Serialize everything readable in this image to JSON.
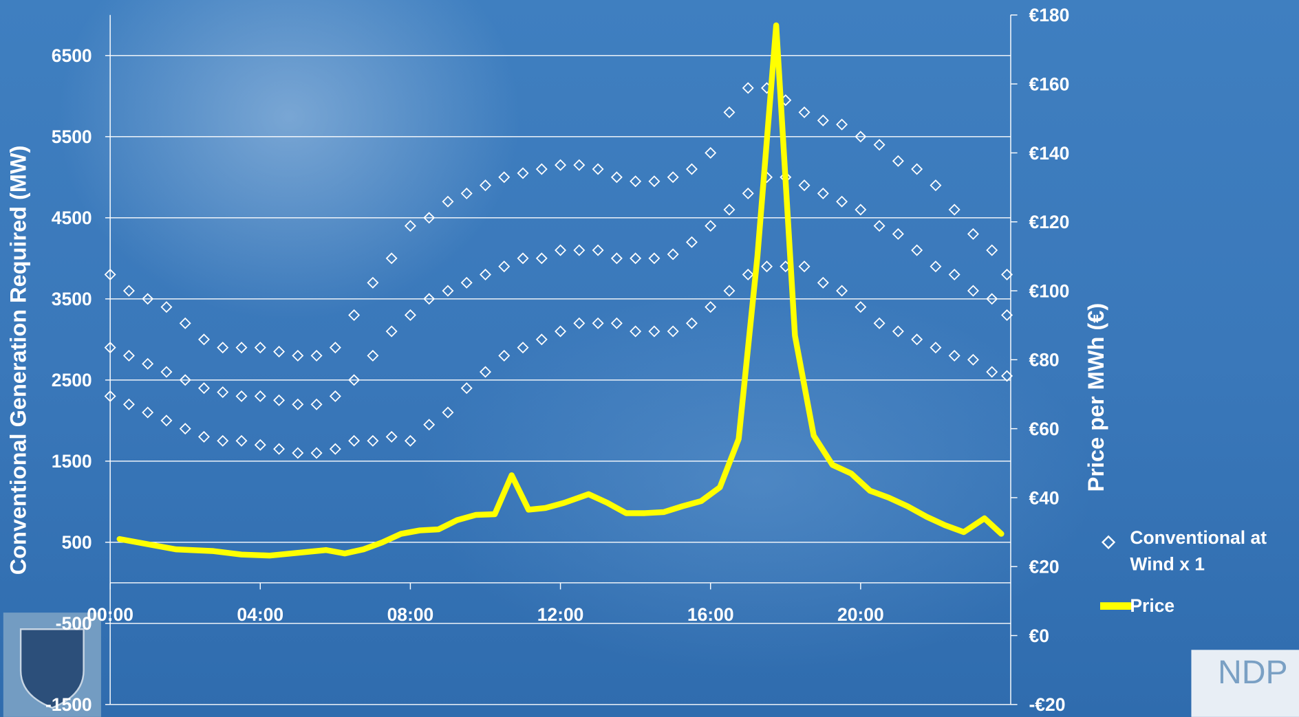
{
  "chart_data": {
    "type": "combo",
    "y_axis_label": "Conventional Generation Required (MW)",
    "y2_axis_label": "Price per MWh (€)",
    "xlim": [
      0,
      24
    ],
    "xticks": [
      {
        "value": 0,
        "label": "00:00"
      },
      {
        "value": 4,
        "label": "04:00"
      },
      {
        "value": 8,
        "label": "08:00"
      },
      {
        "value": 12,
        "label": "12:00"
      },
      {
        "value": 16,
        "label": "16:00"
      },
      {
        "value": 20,
        "label": "20:00"
      }
    ],
    "ylim": [
      -1500,
      7000
    ],
    "yticks": [
      -1500,
      -500,
      500,
      1500,
      2500,
      3500,
      4500,
      5500,
      6500
    ],
    "y2lim": [
      -20,
      180
    ],
    "y2ticks": [
      {
        "value": -20,
        "label": "-€20"
      },
      {
        "value": 0,
        "label": "€0"
      },
      {
        "value": 20,
        "label": "€20"
      },
      {
        "value": 40,
        "label": "€40"
      },
      {
        "value": 60,
        "label": "€60"
      },
      {
        "value": 80,
        "label": "€80"
      },
      {
        "value": 100,
        "label": "€100"
      },
      {
        "value": 120,
        "label": "€120"
      },
      {
        "value": 140,
        "label": "€140"
      },
      {
        "value": 160,
        "label": "€160"
      },
      {
        "value": 180,
        "label": "€180"
      }
    ],
    "grid": true,
    "series": [
      {
        "name": "Conventional at Wind x 1",
        "type": "scatter",
        "color": "#ffffff",
        "x": [
          0,
          0,
          0,
          0.5,
          0.5,
          0.5,
          1,
          1,
          1,
          1.5,
          1.5,
          1.5,
          2,
          2,
          2,
          2.5,
          2.5,
          2.5,
          3,
          3,
          3,
          3.5,
          3.5,
          3.5,
          4,
          4,
          4,
          4.5,
          4.5,
          4.5,
          5,
          5,
          5,
          5.5,
          5.5,
          5.5,
          6,
          6,
          6,
          6.5,
          6.5,
          6.5,
          7,
          7,
          7,
          7.5,
          7.5,
          7.5,
          8,
          8,
          8,
          8.5,
          8.5,
          8.5,
          9,
          9,
          9,
          9.5,
          9.5,
          9.5,
          10,
          10,
          10,
          10.5,
          10.5,
          10.5,
          11,
          11,
          11,
          11.5,
          11.5,
          11.5,
          12,
          12,
          12,
          12.5,
          12.5,
          12.5,
          13,
          13,
          13,
          13.5,
          13.5,
          13.5,
          14,
          14,
          14,
          14.5,
          14.5,
          14.5,
          15,
          15,
          15,
          15.5,
          15.5,
          15.5,
          16,
          16,
          16,
          16.5,
          16.5,
          16.5,
          17,
          17,
          17,
          17.5,
          17.5,
          17.5,
          18,
          18,
          18,
          18.5,
          18.5,
          18.5,
          19,
          19,
          19,
          19.5,
          19.5,
          19.5,
          20,
          20,
          20,
          20.5,
          20.5,
          20.5,
          21,
          21,
          21,
          21.5,
          21.5,
          21.5,
          22,
          22,
          22,
          22.5,
          22.5,
          22.5,
          23,
          23,
          23,
          23.5,
          23.5,
          23.5,
          23.9,
          23.9,
          23.9
        ],
        "values": [
          2300,
          2900,
          3800,
          2200,
          2800,
          3600,
          2100,
          2700,
          3500,
          2000,
          2600,
          3400,
          1900,
          2500,
          3200,
          1800,
          2400,
          3000,
          1750,
          2350,
          2900,
          1750,
          2300,
          2900,
          1700,
          2300,
          2900,
          1650,
          2250,
          2850,
          1600,
          2200,
          2800,
          1600,
          2200,
          2800,
          1650,
          2300,
          2900,
          1750,
          2500,
          3300,
          1750,
          2800,
          3700,
          1800,
          3100,
          4000,
          1750,
          3300,
          4400,
          1950,
          3500,
          4500,
          2100,
          3600,
          4700,
          2400,
          3700,
          4800,
          2600,
          3800,
          4900,
          2800,
          3900,
          5000,
          2900,
          4000,
          5050,
          3000,
          4000,
          5100,
          3100,
          4100,
          5150,
          3200,
          4100,
          5150,
          3200,
          4100,
          5100,
          3200,
          4000,
          5000,
          3100,
          4000,
          4950,
          3100,
          4000,
          4950,
          3100,
          4050,
          5000,
          3200,
          4200,
          5100,
          3400,
          4400,
          5300,
          3600,
          4600,
          5800,
          3800,
          4800,
          6100,
          3900,
          5000,
          6100,
          3900,
          5000,
          5950,
          3900,
          4900,
          5800,
          3700,
          4800,
          5700,
          3600,
          4700,
          5650,
          3400,
          4600,
          5500,
          3200,
          4400,
          5400,
          3100,
          4300,
          5200,
          3000,
          4100,
          5100,
          2900,
          3900,
          4900,
          2800,
          3800,
          4600,
          2750,
          3600,
          4300,
          2600,
          3500,
          4100,
          2550,
          3300,
          3800
        ]
      },
      {
        "name": "Price",
        "type": "line",
        "axis": "y2",
        "color": "#ffff00",
        "x": [
          0.25,
          1,
          1.75,
          2.75,
          3.5,
          4.25,
          5,
          5.75,
          6.25,
          6.75,
          7.25,
          7.75,
          8.25,
          8.75,
          9.25,
          9.75,
          10.25,
          10.7,
          11.15,
          11.6,
          12.1,
          12.75,
          13.25,
          13.75,
          14.25,
          14.75,
          15.25,
          15.75,
          16.25,
          16.75,
          17.25,
          17.75,
          18.25,
          18.75,
          19.25,
          19.75,
          20.25,
          20.75,
          21.25,
          21.75,
          22.25,
          22.75,
          23.3,
          23.75
        ],
        "values": [
          28,
          26.5,
          25,
          24.5,
          23.5,
          23.2,
          24,
          24.8,
          23.8,
          25,
          27,
          29.5,
          30.5,
          30.8,
          33.5,
          35,
          35.2,
          46.5,
          36.5,
          37,
          38.5,
          41,
          38.5,
          35.5,
          35.5,
          35.8,
          37.5,
          39,
          43,
          57,
          110,
          177,
          87,
          58,
          49.5,
          47,
          42,
          40,
          37.5,
          34.5,
          32,
          30,
          34,
          29.5
        ]
      }
    ],
    "logo_text": "NDP"
  }
}
